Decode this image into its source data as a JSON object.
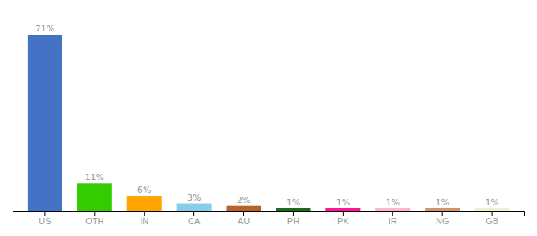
{
  "chart_data": {
    "type": "bar",
    "categories": [
      "US",
      "OTH",
      "IN",
      "CA",
      "AU",
      "PH",
      "PK",
      "IR",
      "NG",
      "GB"
    ],
    "values": [
      71,
      11,
      6,
      3,
      2,
      1,
      1,
      1,
      1,
      1
    ],
    "value_labels": [
      "71%",
      "11%",
      "6%",
      "3%",
      "2%",
      "1%",
      "1%",
      "1%",
      "1%",
      "1%"
    ],
    "colors": [
      "#4472C4",
      "#33CC00",
      "#FFA500",
      "#87CEEB",
      "#B8622A",
      "#1B6B1B",
      "#FF1493",
      "#FFB6C8",
      "#D2956A",
      "#F0EDD0"
    ],
    "ylim": [
      0,
      78
    ],
    "tick_labels": "x",
    "grid": false
  }
}
